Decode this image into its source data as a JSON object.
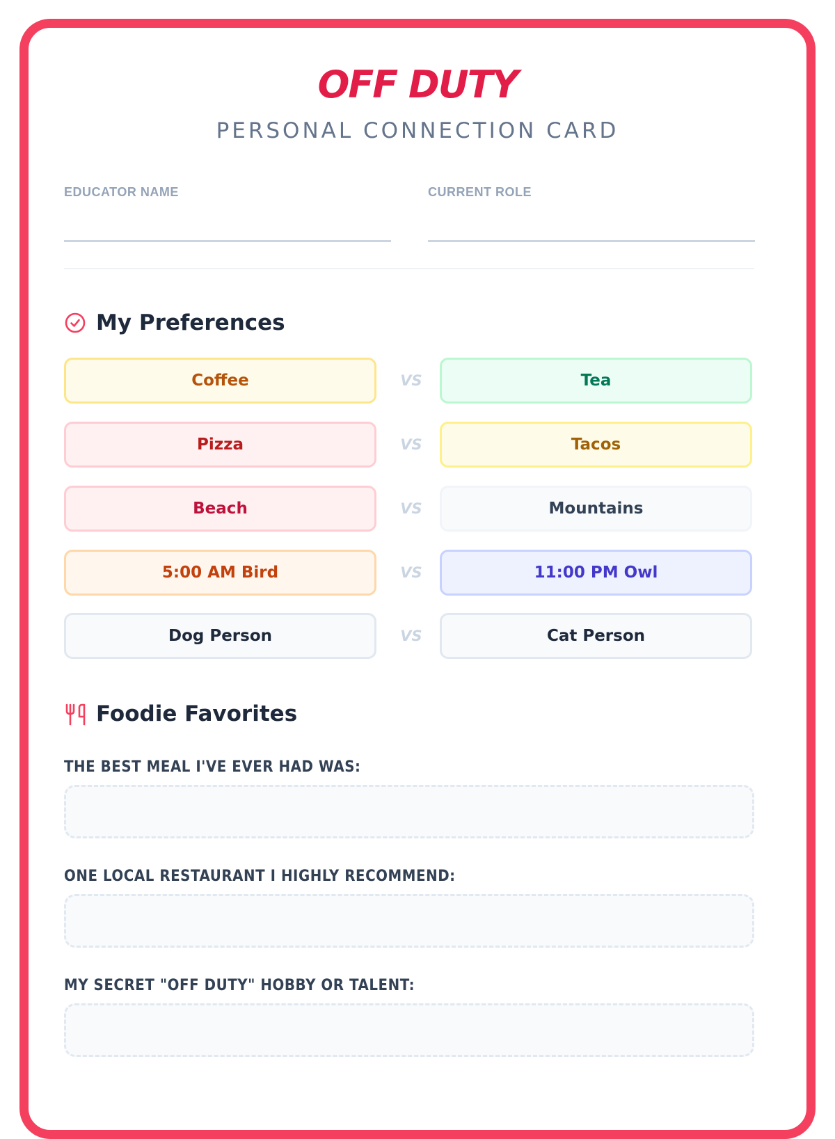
{
  "header": {
    "title": "OFF DUTY",
    "subtitle": "PERSONAL CONNECTION CARD"
  },
  "fields": {
    "educator_name": {
      "label": "EDUCATOR NAME",
      "value": ""
    },
    "current_role": {
      "label": "CURRENT ROLE",
      "value": ""
    }
  },
  "preferences": {
    "title": "My Preferences",
    "icon": "check-circle-icon",
    "vs_label": "VS",
    "pairs": [
      {
        "left": "Coffee",
        "right": "Tea"
      },
      {
        "left": "Pizza",
        "right": "Tacos"
      },
      {
        "left": "Beach",
        "right": "Mountains"
      },
      {
        "left": "5:00 AM Bird",
        "right": "11:00 PM Owl"
      },
      {
        "left": "Dog Person",
        "right": "Cat Person"
      }
    ]
  },
  "foodie": {
    "title": "Foodie Favorites",
    "icon": "utensils-icon",
    "prompts": [
      {
        "label": "THE BEST MEAL I'VE EVER HAD WAS:",
        "value": ""
      },
      {
        "label": "ONE LOCAL RESTAURANT I HIGHLY RECOMMEND:",
        "value": ""
      },
      {
        "label": "MY SECRET \"OFF DUTY\" HOBBY OR TALENT:",
        "value": ""
      }
    ]
  },
  "colors": {
    "accent": "#f43f5e",
    "title": "#e11d48",
    "subtitle": "#64748b"
  }
}
